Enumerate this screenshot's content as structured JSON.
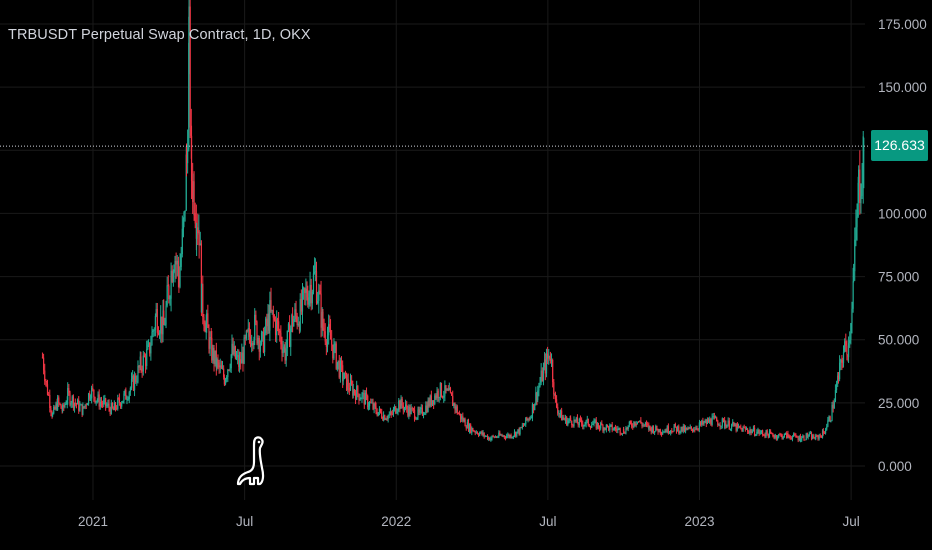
{
  "title": "TRBUSDT Perpetual Swap Contract, 1D, OKX",
  "last_price": "126.633",
  "colors": {
    "background": "#000000",
    "up": "#22ab94",
    "down": "#f23645",
    "text": "#d1d4dc",
    "axis_text": "#b2b5be",
    "grid": "#1a1a1a",
    "price_tag": "#089981"
  },
  "logo_icon": "tradingview-dino-icon",
  "chart_data": {
    "type": "line",
    "title": "TRBUSDT Perpetual Swap Contract, 1D, OKX",
    "ylim": [
      0,
      175
    ],
    "y_ticks": [
      "0.000",
      "25.000",
      "50.000",
      "75.000",
      "100.000",
      "125.000",
      "150.000",
      "175.000"
    ],
    "y_tick_values": [
      0,
      25,
      50,
      75,
      100,
      125,
      150,
      175
    ],
    "x_ticks": [
      "2021",
      "Jul",
      "2022",
      "Jul",
      "2023",
      "Jul"
    ],
    "x_tick_months": [
      2,
      8,
      14,
      20,
      26,
      32
    ],
    "x_range_months": [
      -1.68,
      32.55
    ],
    "last_price": 126.633,
    "series": [
      {
        "month": [
          0.0,
          0.2,
          0.4,
          0.6,
          0.8,
          1.0,
          1.3,
          1.6,
          1.9,
          2.2,
          2.5,
          2.8,
          3.0,
          3.3,
          3.6,
          3.9,
          4.2,
          4.5,
          4.8,
          5.0,
          5.2,
          5.4,
          5.6,
          5.7,
          5.8,
          5.9,
          6.0,
          6.1,
          6.2,
          6.3,
          6.5,
          6.7,
          6.9,
          7.2,
          7.5,
          7.8,
          8.1,
          8.4,
          8.7,
          9.0,
          9.3,
          9.6,
          9.9,
          10.2,
          10.5,
          10.8,
          11.1,
          11.4,
          11.7,
          11.9,
          12.1,
          12.3,
          12.6,
          12.9,
          13.2,
          13.5,
          13.8,
          14.1,
          14.5,
          14.9,
          15.3,
          15.7,
          16.1,
          16.5,
          16.9,
          17.3,
          17.7,
          18.1,
          18.5,
          18.9,
          19.3,
          19.6,
          19.9,
          20.1,
          20.3,
          20.5,
          20.7,
          20.9,
          21.2,
          21.6,
          22.0,
          22.5,
          23.0,
          23.5,
          24.0,
          24.5,
          25.0,
          25.5,
          26.0,
          26.5,
          27.0,
          27.5,
          28.0,
          28.5,
          29.0,
          29.5,
          30.0,
          30.3,
          30.6,
          30.9,
          31.2,
          31.5,
          31.7,
          31.9,
          32.1,
          32.3,
          32.5
        ],
        "close": [
          43,
          30,
          20,
          25,
          22,
          28,
          25,
          22,
          30,
          26,
          24,
          22,
          25,
          28,
          33,
          40,
          45,
          60,
          55,
          70,
          85,
          75,
          95,
          120,
          165,
          115,
          110,
          100,
          95,
          65,
          55,
          45,
          40,
          35,
          45,
          40,
          50,
          55,
          48,
          60,
          55,
          45,
          58,
          60,
          70,
          75,
          55,
          50,
          40,
          35,
          32,
          30,
          28,
          25,
          22,
          20,
          20,
          25,
          22,
          20,
          25,
          30,
          28,
          20,
          15,
          13,
          11,
          12,
          12,
          14,
          20,
          30,
          40,
          45,
          25,
          20,
          18,
          18,
          17,
          17,
          16,
          15,
          14,
          18,
          15,
          14,
          15,
          14,
          16,
          18,
          17,
          15,
          14,
          13,
          12,
          12,
          11,
          12,
          11,
          13,
          20,
          35,
          45,
          48,
          75,
          110,
          126.6
        ]
      }
    ]
  }
}
